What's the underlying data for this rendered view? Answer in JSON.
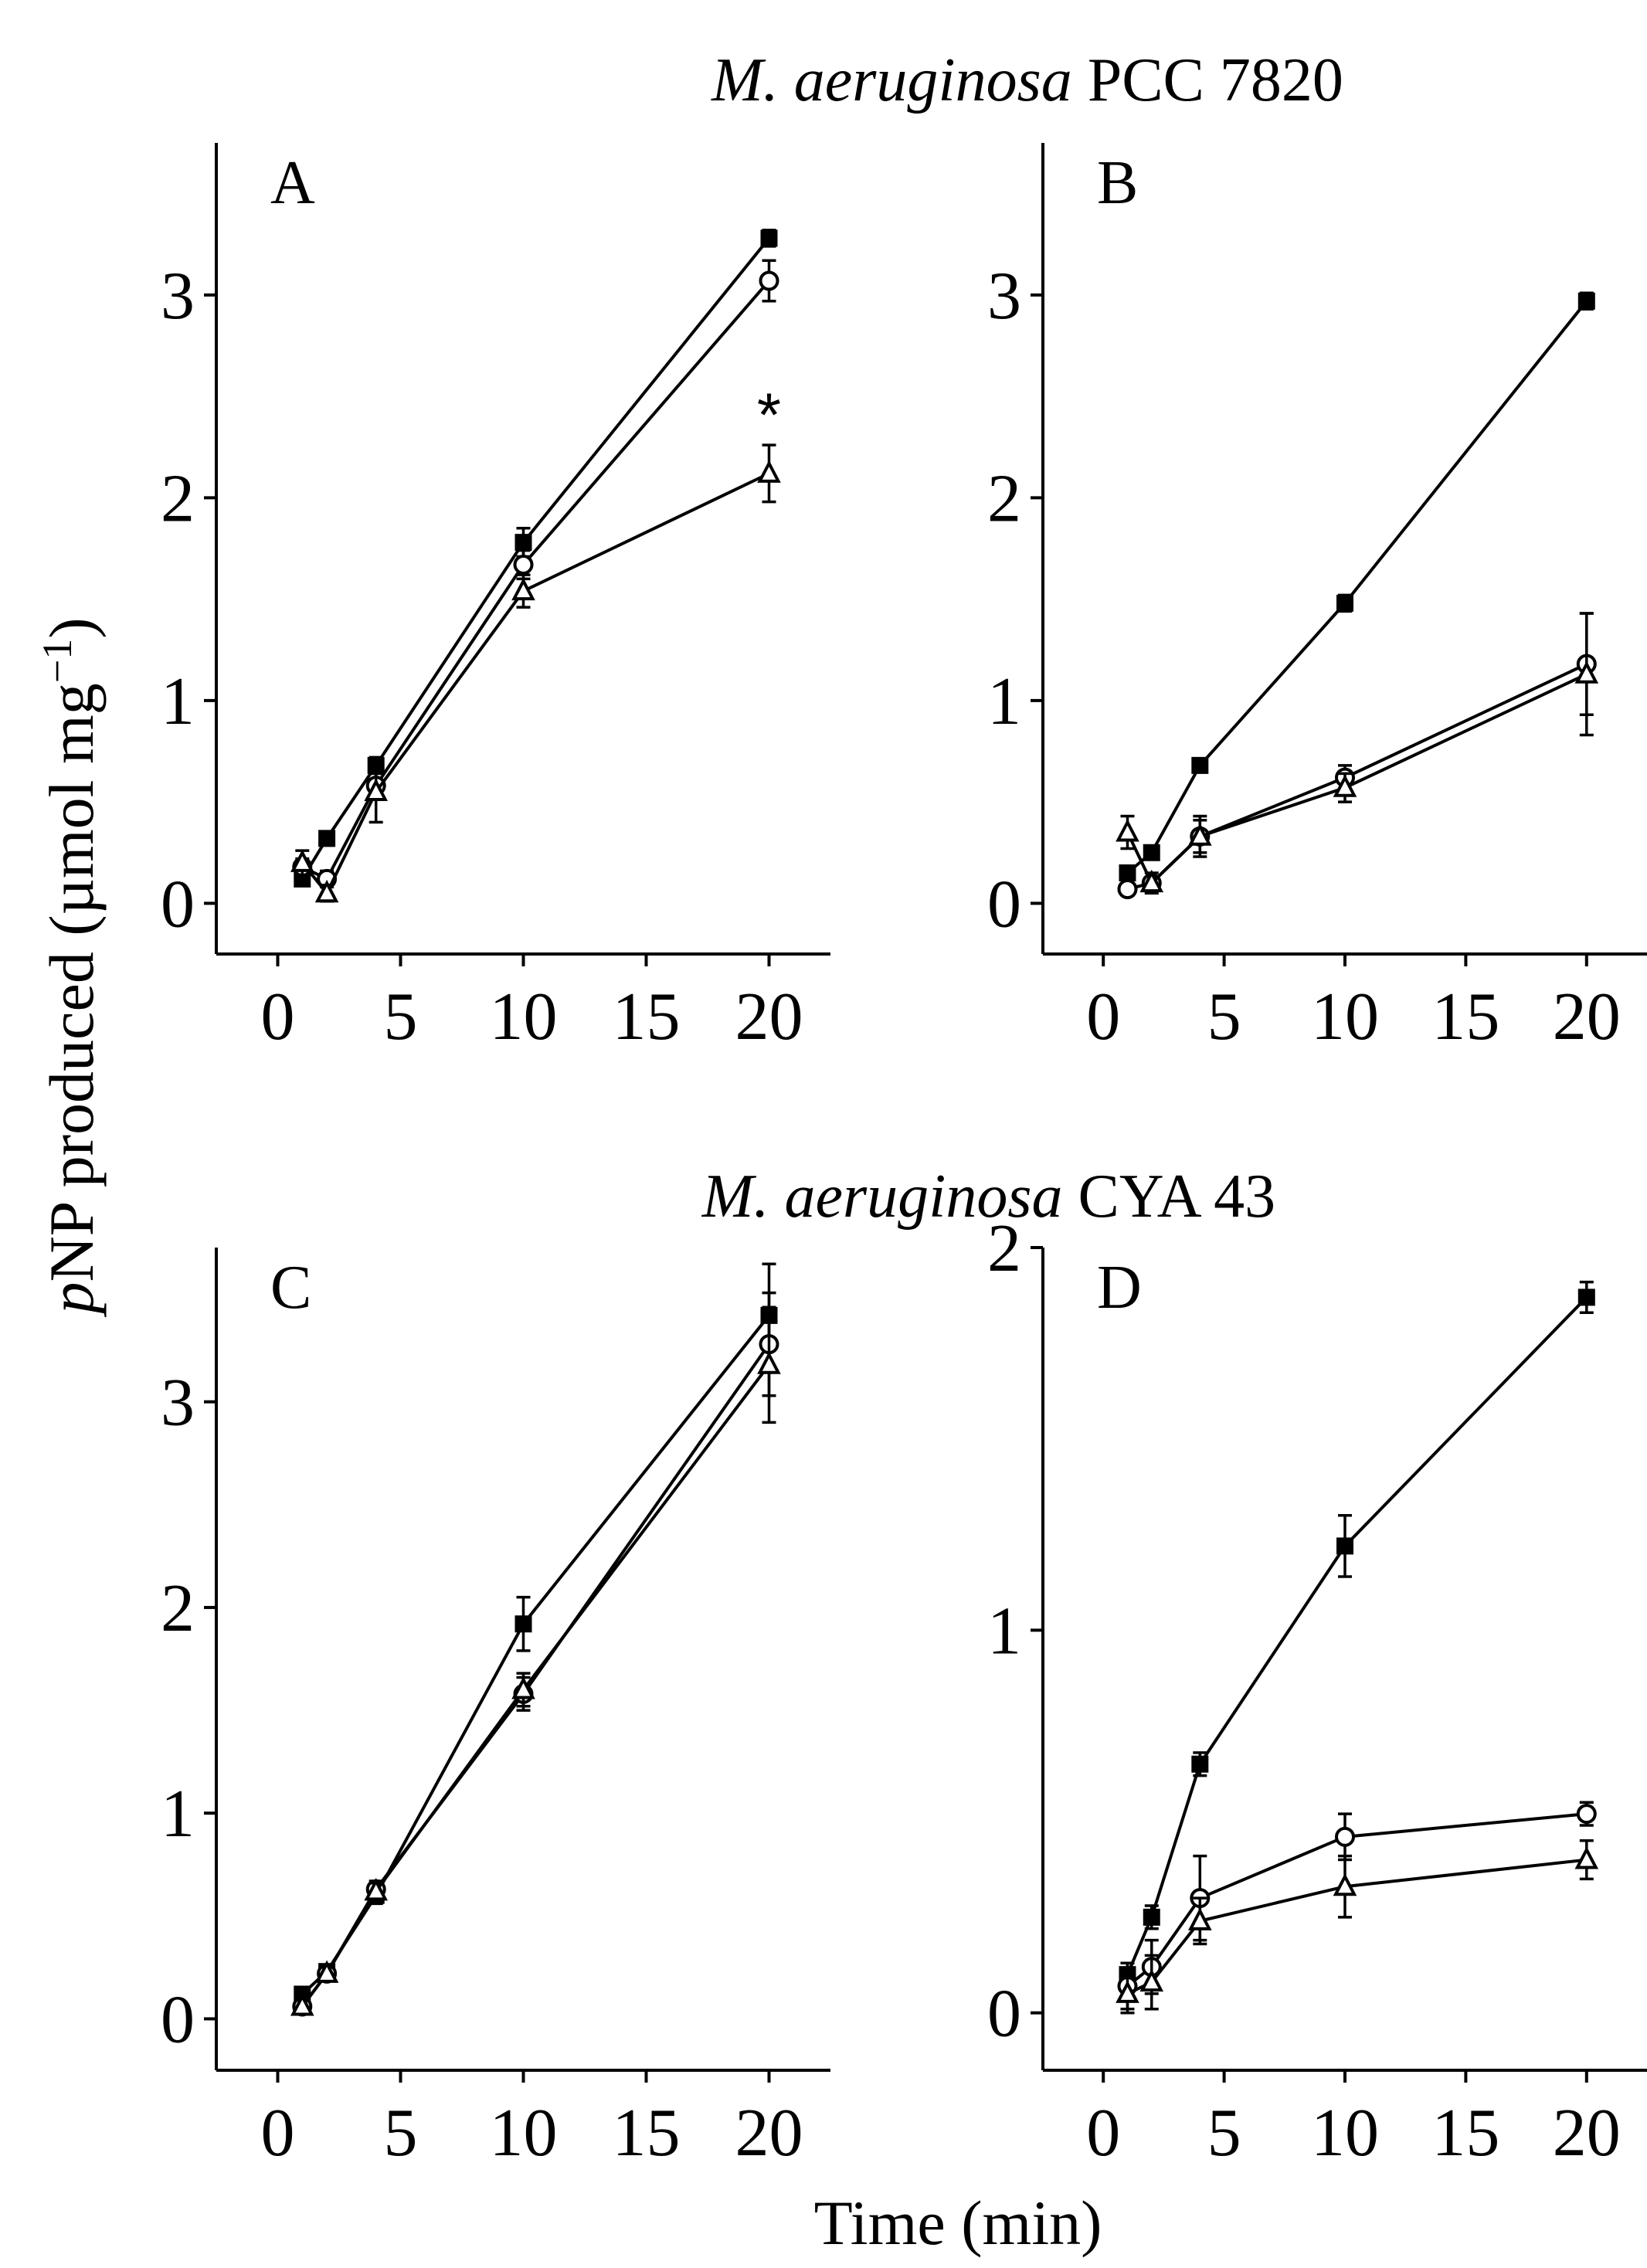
{
  "figure": {
    "group_titles": [
      {
        "species": "M. aeruginosa",
        "strain": " PCC 7820"
      },
      {
        "species": "M. aeruginosa",
        "strain": " CYA 43"
      }
    ],
    "ylabel": {
      "italic": "p",
      "rest": "NP produced (µmol mg",
      "sup": "−1",
      "close": ")"
    },
    "xlabel": "Time (min)"
  },
  "chart_data": [
    {
      "type": "line",
      "panel": "A",
      "x": [
        1,
        2,
        4,
        10,
        20
      ],
      "xlim": [
        -2.5,
        22.5
      ],
      "ylim": [
        -0.25,
        3.75
      ],
      "xticks": [
        0,
        5,
        10,
        15,
        20
      ],
      "yticks": [
        0,
        1,
        2,
        3
      ],
      "series": [
        {
          "marker": "filled-square",
          "values": [
            0.12,
            0.32,
            0.68,
            1.78,
            3.28
          ],
          "errors": [
            0.03,
            0.03,
            0.04,
            0.07,
            0.04
          ]
        },
        {
          "marker": "open-circle",
          "values": [
            0.18,
            0.12,
            0.58,
            1.67,
            3.07
          ],
          "errors": [
            0.04,
            0.04,
            0.06,
            0.07,
            0.1
          ]
        },
        {
          "marker": "open-triangle",
          "values": [
            0.2,
            0.05,
            0.55,
            1.54,
            2.12
          ],
          "errors": [
            0.06,
            0.04,
            0.15,
            0.08,
            0.14
          ]
        }
      ],
      "annotations": [
        {
          "text": "*",
          "x": 20,
          "y": 2.45
        }
      ],
      "grid": false,
      "legend": "none"
    },
    {
      "type": "line",
      "panel": "B",
      "x": [
        1,
        2,
        4,
        10,
        20
      ],
      "xlim": [
        -2.5,
        22.5
      ],
      "ylim": [
        -0.25,
        3.75
      ],
      "xticks": [
        0,
        5,
        10,
        15,
        20
      ],
      "yticks": [
        0,
        1,
        2,
        3
      ],
      "series": [
        {
          "marker": "filled-square",
          "values": [
            0.15,
            0.25,
            0.68,
            1.48,
            2.97
          ],
          "errors": [
            0.03,
            0.03,
            0.03,
            0.04,
            0.04
          ]
        },
        {
          "marker": "open-circle",
          "values": [
            0.07,
            0.1,
            0.33,
            0.62,
            1.18
          ],
          "errors": [
            0.03,
            0.03,
            0.08,
            0.06,
            0.25
          ]
        },
        {
          "marker": "open-triangle",
          "values": [
            0.35,
            0.1,
            0.33,
            0.57,
            1.13
          ],
          "errors": [
            0.08,
            0.05,
            0.1,
            0.07,
            0.3
          ]
        }
      ],
      "grid": false,
      "legend": "none"
    },
    {
      "type": "line",
      "panel": "C",
      "x": [
        1,
        2,
        4,
        10,
        20
      ],
      "xlim": [
        -2.5,
        22.5
      ],
      "ylim": [
        -0.25,
        3.75
      ],
      "xticks": [
        0,
        5,
        10,
        15,
        20
      ],
      "yticks": [
        0,
        1,
        2,
        3
      ],
      "series": [
        {
          "marker": "filled-square",
          "values": [
            0.12,
            0.23,
            0.6,
            1.92,
            3.42
          ],
          "errors": [
            0.03,
            0.03,
            0.04,
            0.13,
            0.25
          ]
        },
        {
          "marker": "open-circle",
          "values": [
            0.06,
            0.22,
            0.63,
            1.58,
            3.28
          ],
          "errors": [
            0.03,
            0.03,
            0.04,
            0.08,
            0.25
          ]
        },
        {
          "marker": "open-triangle",
          "values": [
            0.06,
            0.22,
            0.62,
            1.6,
            3.18
          ],
          "errors": [
            0.03,
            0.03,
            0.04,
            0.08,
            0.28
          ]
        }
      ],
      "grid": false,
      "legend": "none"
    },
    {
      "type": "line",
      "panel": "D",
      "x": [
        1,
        2,
        4,
        10,
        20
      ],
      "xlim": [
        -2.5,
        22.5
      ],
      "ylim": [
        -0.15,
        2.0
      ],
      "xticks": [
        0,
        5,
        10,
        15,
        20
      ],
      "yticks": [
        0,
        1,
        2
      ],
      "series": [
        {
          "marker": "filled-square",
          "values": [
            0.1,
            0.25,
            0.65,
            1.22,
            1.87
          ],
          "errors": [
            0.03,
            0.03,
            0.03,
            0.08,
            0.04
          ]
        },
        {
          "marker": "open-circle",
          "values": [
            0.07,
            0.12,
            0.3,
            0.46,
            0.52
          ],
          "errors": [
            0.06,
            0.07,
            0.11,
            0.06,
            0.03
          ]
        },
        {
          "marker": "open-triangle",
          "values": [
            0.05,
            0.08,
            0.24,
            0.33,
            0.4
          ],
          "errors": [
            0.05,
            0.07,
            0.06,
            0.08,
            0.05
          ]
        }
      ],
      "grid": false,
      "legend": "none"
    }
  ]
}
